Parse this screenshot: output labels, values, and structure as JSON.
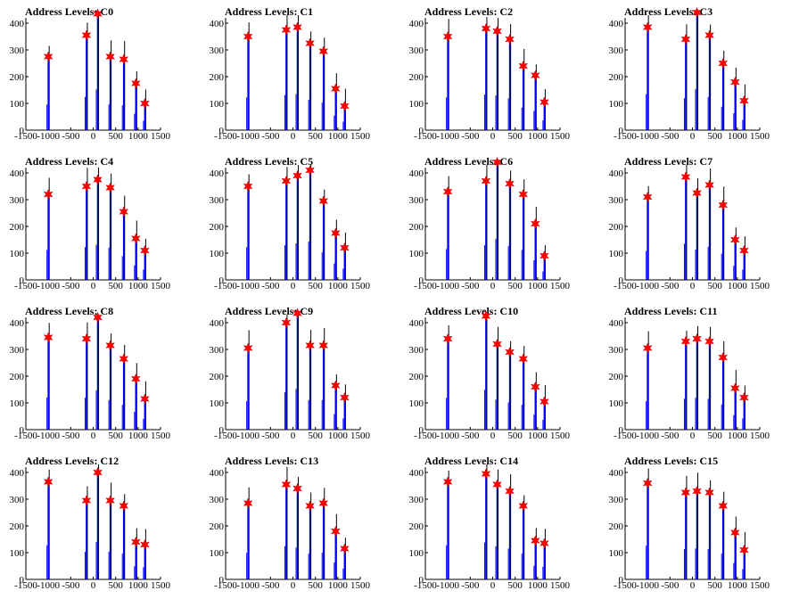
{
  "chart_data": [
    {
      "type": "line",
      "title": "Address Levels: C0",
      "xlim": [
        -1500,
        1500
      ],
      "xticks": [
        "-1500",
        "-1000",
        "-500",
        "0",
        "500",
        "1000",
        "1500"
      ],
      "ylim": [
        0,
        420
      ],
      "yticks": [
        "0",
        "100",
        "200",
        "300",
        "400"
      ],
      "stars": {
        "x": [
          -1000,
          -150,
          100,
          380,
          680,
          950,
          1150
        ],
        "y": [
          275,
          355,
          435,
          275,
          265,
          175,
          100
        ]
      }
    },
    {
      "type": "line",
      "title": "Address Levels: C1",
      "xlim": [
        -1500,
        1500
      ],
      "xticks": [
        "-1500",
        "-1000",
        "-500",
        "0",
        "500",
        "1000",
        "1500"
      ],
      "ylim": [
        0,
        420
      ],
      "yticks": [
        "0",
        "100",
        "200",
        "300",
        "400"
      ],
      "stars": {
        "x": [
          -1000,
          -150,
          100,
          380,
          680,
          950,
          1150
        ],
        "y": [
          350,
          375,
          385,
          325,
          295,
          155,
          90
        ]
      }
    },
    {
      "type": "line",
      "title": "Address Levels: C2",
      "xlim": [
        -1500,
        1500
      ],
      "xticks": [
        "-1500",
        "-1000",
        "-500",
        "0",
        "500",
        "1000",
        "1500"
      ],
      "ylim": [
        0,
        420
      ],
      "yticks": [
        "0",
        "100",
        "200",
        "300",
        "400"
      ],
      "stars": {
        "x": [
          -1000,
          -150,
          100,
          380,
          680,
          950,
          1150
        ],
        "y": [
          350,
          380,
          370,
          340,
          240,
          205,
          105
        ]
      }
    },
    {
      "type": "line",
      "title": "Address Levels: C3",
      "xlim": [
        -1500,
        1500
      ],
      "xticks": [
        "-1500",
        "-1000",
        "-500",
        "0",
        "500",
        "1000",
        "1500"
      ],
      "ylim": [
        0,
        420
      ],
      "yticks": [
        "0",
        "100",
        "200",
        "300",
        "400"
      ],
      "stars": {
        "x": [
          -1000,
          -150,
          100,
          380,
          680,
          950,
          1150
        ],
        "y": [
          385,
          340,
          440,
          355,
          250,
          180,
          110
        ]
      }
    },
    {
      "type": "line",
      "title": "Address Levels: C4",
      "xlim": [
        -1500,
        1500
      ],
      "xticks": [
        "-1500",
        "-1000",
        "-500",
        "0",
        "500",
        "1000",
        "1500"
      ],
      "ylim": [
        0,
        420
      ],
      "yticks": [
        "0",
        "100",
        "200",
        "300",
        "400"
      ],
      "stars": {
        "x": [
          -1000,
          -150,
          100,
          380,
          680,
          950,
          1150
        ],
        "y": [
          320,
          350,
          375,
          345,
          255,
          155,
          110
        ]
      }
    },
    {
      "type": "line",
      "title": "Address Levels: C5",
      "xlim": [
        -1500,
        1500
      ],
      "xticks": [
        "-1500",
        "-1000",
        "-500",
        "0",
        "500",
        "1000",
        "1500"
      ],
      "ylim": [
        0,
        420
      ],
      "yticks": [
        "0",
        "100",
        "200",
        "300",
        "400"
      ],
      "stars": {
        "x": [
          -1000,
          -150,
          100,
          380,
          680,
          950,
          1150
        ],
        "y": [
          350,
          370,
          390,
          410,
          295,
          175,
          120
        ]
      }
    },
    {
      "type": "line",
      "title": "Address Levels: C6",
      "xlim": [
        -1500,
        1500
      ],
      "xticks": [
        "-1500",
        "-1000",
        "-500",
        "0",
        "500",
        "1000",
        "1500"
      ],
      "ylim": [
        0,
        420
      ],
      "yticks": [
        "0",
        "100",
        "200",
        "300",
        "400"
      ],
      "stars": {
        "x": [
          -1000,
          -150,
          100,
          380,
          680,
          950,
          1150
        ],
        "y": [
          330,
          370,
          440,
          360,
          320,
          210,
          90
        ]
      }
    },
    {
      "type": "line",
      "title": "Address Levels: C7",
      "xlim": [
        -1500,
        1500
      ],
      "xticks": [
        "-1500",
        "-1000",
        "-500",
        "0",
        "500",
        "1000",
        "1500"
      ],
      "ylim": [
        0,
        420
      ],
      "yticks": [
        "0",
        "100",
        "200",
        "300",
        "400"
      ],
      "stars": {
        "x": [
          -1000,
          -150,
          100,
          380,
          680,
          950,
          1150
        ],
        "y": [
          310,
          385,
          325,
          355,
          280,
          150,
          110
        ]
      }
    },
    {
      "type": "line",
      "title": "Address Levels: C8",
      "xlim": [
        -1500,
        1500
      ],
      "xticks": [
        "-1500",
        "-1000",
        "-500",
        "0",
        "500",
        "1000",
        "1500"
      ],
      "ylim": [
        0,
        420
      ],
      "yticks": [
        "0",
        "100",
        "200",
        "300",
        "400"
      ],
      "stars": {
        "x": [
          -1000,
          -150,
          100,
          380,
          680,
          950,
          1150
        ],
        "y": [
          345,
          340,
          420,
          315,
          265,
          190,
          115
        ]
      }
    },
    {
      "type": "line",
      "title": "Address Levels: C9",
      "xlim": [
        -1500,
        1500
      ],
      "xticks": [
        "-1500",
        "-1000",
        "-500",
        "0",
        "500",
        "1000",
        "1500"
      ],
      "ylim": [
        0,
        420
      ],
      "yticks": [
        "0",
        "100",
        "200",
        "300",
        "400"
      ],
      "stars": {
        "x": [
          -1000,
          -150,
          100,
          380,
          680,
          950,
          1150
        ],
        "y": [
          305,
          400,
          435,
          315,
          315,
          165,
          120
        ]
      }
    },
    {
      "type": "line",
      "title": "Address Levels: C10",
      "xlim": [
        -1500,
        1500
      ],
      "xticks": [
        "-1500",
        "-1000",
        "-500",
        "0",
        "500",
        "1000",
        "1500"
      ],
      "ylim": [
        0,
        420
      ],
      "yticks": [
        "0",
        "100",
        "200",
        "300",
        "400"
      ],
      "stars": {
        "x": [
          -1000,
          -150,
          100,
          380,
          680,
          950,
          1150
        ],
        "y": [
          340,
          425,
          320,
          290,
          265,
          160,
          105
        ]
      }
    },
    {
      "type": "line",
      "title": "Address Levels: C11",
      "xlim": [
        -1500,
        1500
      ],
      "xticks": [
        "-1500",
        "-1000",
        "-500",
        "0",
        "500",
        "1000",
        "1500"
      ],
      "ylim": [
        0,
        420
      ],
      "yticks": [
        "0",
        "100",
        "200",
        "300",
        "400"
      ],
      "stars": {
        "x": [
          -1000,
          -150,
          100,
          380,
          680,
          950,
          1150
        ],
        "y": [
          305,
          330,
          340,
          330,
          270,
          155,
          120
        ]
      }
    },
    {
      "type": "line",
      "title": "Address Levels: C12",
      "xlim": [
        -1500,
        1500
      ],
      "xticks": [
        "-1500",
        "-1000",
        "-500",
        "0",
        "500",
        "1000",
        "1500"
      ],
      "ylim": [
        0,
        420
      ],
      "yticks": [
        "0",
        "100",
        "200",
        "300",
        "400"
      ],
      "stars": {
        "x": [
          -1000,
          -150,
          100,
          380,
          680,
          950,
          1150
        ],
        "y": [
          365,
          295,
          400,
          295,
          275,
          140,
          130
        ]
      }
    },
    {
      "type": "line",
      "title": "Address Levels: C13",
      "xlim": [
        -1500,
        1500
      ],
      "xticks": [
        "-1500",
        "-1000",
        "-500",
        "0",
        "500",
        "1000",
        "1500"
      ],
      "ylim": [
        0,
        420
      ],
      "yticks": [
        "0",
        "100",
        "200",
        "300",
        "400"
      ],
      "stars": {
        "x": [
          -1000,
          -150,
          100,
          380,
          680,
          950,
          1150
        ],
        "y": [
          285,
          355,
          340,
          275,
          285,
          180,
          115
        ]
      }
    },
    {
      "type": "line",
      "title": "Address Levels: C14",
      "xlim": [
        -1500,
        1500
      ],
      "xticks": [
        "-1500",
        "-1000",
        "-500",
        "0",
        "500",
        "1000",
        "1500"
      ],
      "ylim": [
        0,
        420
      ],
      "yticks": [
        "0",
        "100",
        "200",
        "300",
        "400"
      ],
      "stars": {
        "x": [
          -1000,
          -150,
          100,
          380,
          680,
          950,
          1150
        ],
        "y": [
          365,
          395,
          355,
          330,
          275,
          145,
          135
        ]
      }
    },
    {
      "type": "line",
      "title": "Address Levels: C15",
      "xlim": [
        -1500,
        1500
      ],
      "xticks": [
        "-1500",
        "-1000",
        "-500",
        "0",
        "500",
        "1000",
        "1500"
      ],
      "ylim": [
        0,
        420
      ],
      "yticks": [
        "0",
        "100",
        "200",
        "300",
        "400"
      ],
      "stars": {
        "x": [
          -1000,
          -150,
          100,
          380,
          680,
          950,
          1150
        ],
        "y": [
          360,
          325,
          330,
          325,
          275,
          175,
          110
        ]
      }
    }
  ],
  "colors": {
    "line": "#0000ff",
    "star": "#ff0000",
    "spike": "#000000"
  }
}
